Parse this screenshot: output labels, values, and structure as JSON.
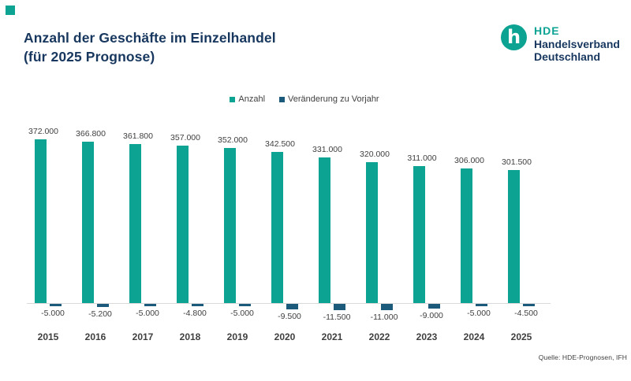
{
  "title": {
    "line1": "Anzahl der Geschäfte im Einzelhandel",
    "line2": "(für 2025 Prognose)"
  },
  "logo": {
    "monogram": "h",
    "abbr": "HDE",
    "line1": "Handelsverband",
    "line2": "Deutschland"
  },
  "legend": {
    "items": [
      {
        "label": "Anzahl",
        "color": "#0CA392"
      },
      {
        "label": "Veränderung zu Vorjahr",
        "color": "#1B5A7B"
      }
    ]
  },
  "source": "Quelle: HDE-Prognosen, IFH",
  "colors": {
    "teal": "#0CA392",
    "navy": "#1B5A7B",
    "title_navy": "#17375E",
    "label_gray": "#404040",
    "axis_gray": "#D9D9D9"
  },
  "chart_data": {
    "type": "bar",
    "title": "Anzahl der Geschäfte im Einzelhandel (für 2025 Prognose)",
    "categories": [
      "2015",
      "2016",
      "2017",
      "2018",
      "2019",
      "2020",
      "2021",
      "2022",
      "2023",
      "2024",
      "2025"
    ],
    "series": [
      {
        "name": "Anzahl",
        "values": [
          372000,
          366800,
          361800,
          357000,
          352000,
          342500,
          331000,
          320000,
          311000,
          306000,
          301500
        ]
      },
      {
        "name": "Veränderung zu Vorjahr",
        "values": [
          -5000,
          -5200,
          -5000,
          -4800,
          -5000,
          -9500,
          -11500,
          -11000,
          -9000,
          -5000,
          -4500
        ]
      }
    ],
    "value_labels": [
      "372.000",
      "366.800",
      "361.800",
      "357.000",
      "352.000",
      "342.500",
      "331.000",
      "320.000",
      "311.000",
      "306.000",
      "301.500"
    ],
    "change_labels": [
      "-5.000",
      "-5.200",
      "-5.000",
      "-4.800",
      "-5.000",
      "-9.500",
      "-11.500",
      "-11.000",
      "-9.000",
      "-5.000",
      "-4.500"
    ],
    "xlabel": "",
    "ylabel": "",
    "ylim": [
      0,
      400000
    ],
    "grid": false,
    "legend_position": "top-center",
    "data_labels": true
  }
}
